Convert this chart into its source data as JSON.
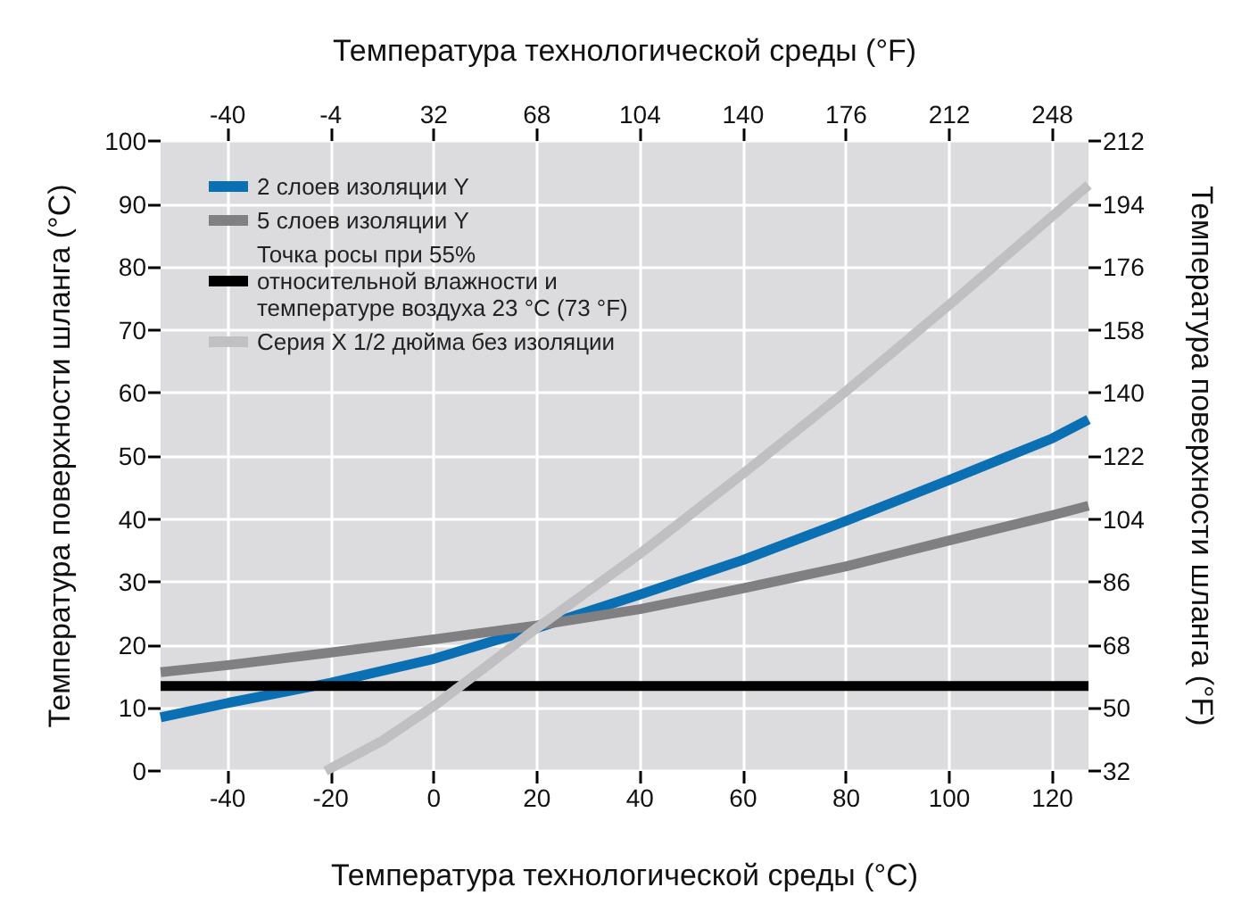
{
  "chart_data": {
    "type": "line",
    "xlabel": "Температура технологической среды (°C)",
    "x2label": "Температура технологической среды (°F)",
    "ylabel": "Температура поверхности шланга (°C)",
    "y2label": "Температура поверхности шланга (°F)",
    "xlim": [
      -53,
      127
    ],
    "xticks": [
      -40,
      -20,
      0,
      20,
      40,
      60,
      80,
      100,
      120
    ],
    "x2lim": [
      -63.4,
      260.6
    ],
    "x2ticks": [
      -40,
      -4,
      32,
      68,
      104,
      140,
      176,
      212,
      248
    ],
    "ylim": [
      0,
      100
    ],
    "yticks": [
      0,
      10,
      20,
      30,
      40,
      50,
      60,
      70,
      80,
      90,
      100
    ],
    "y2lim": [
      32,
      212
    ],
    "y2ticks": [
      32,
      50,
      68,
      86,
      104,
      122,
      140,
      158,
      176,
      194,
      212
    ],
    "grid": true,
    "legend": "top left",
    "marker": "none",
    "line_style": "solid",
    "series": [
      {
        "name": "2 слоев изоляции Y",
        "color": "#0a6fb3",
        "x": [
          -53,
          -40,
          -20,
          0,
          20,
          40,
          60,
          80,
          100,
          120,
          127
        ],
        "values": [
          8.5,
          10.8,
          14,
          17.8,
          22.7,
          28,
          33.5,
          39.7,
          46.2,
          52.8,
          55.8
        ]
      },
      {
        "name": "5 слоев изоляции Y",
        "color": "#808083",
        "x": [
          -53,
          -40,
          -20,
          0,
          20,
          40,
          60,
          80,
          100,
          120,
          127
        ],
        "values": [
          15.7,
          16.8,
          18.8,
          20.9,
          23.1,
          25.7,
          29,
          32.5,
          36.6,
          40.6,
          42.1
        ]
      },
      {
        "name": "Точка росы при 55% относительной влажности и температуре воздуха 23 °C (73 °F)",
        "color": "#000000",
        "x": [
          -53,
          127
        ],
        "values": [
          13.5,
          13.5
        ]
      },
      {
        "name": "Серия X 1/2 дюйма без изоляции",
        "color": "#c0c0c2",
        "x": [
          -21,
          -10,
          0,
          20,
          40,
          60,
          80,
          100,
          127
        ],
        "values": [
          0,
          4.8,
          10.3,
          22.7,
          34.5,
          47.2,
          60.3,
          74,
          93
        ]
      }
    ]
  }
}
